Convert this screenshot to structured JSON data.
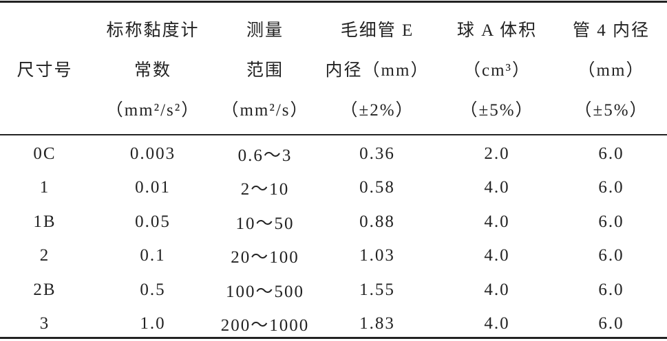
{
  "table": {
    "header": [
      [
        "尺寸号"
      ],
      [
        "标称黏度计",
        "常数",
        "（mm²/s²）"
      ],
      [
        "测量",
        "范围",
        "（mm²/s）"
      ],
      [
        "毛细管 E",
        "内径（mm）",
        "（±2%）"
      ],
      [
        "球 A 体积",
        "（cm³）",
        "（±5%）"
      ],
      [
        "管 4 内径",
        "（mm）",
        "（±5%）"
      ]
    ],
    "rows": [
      [
        "0C",
        "0.003",
        "0.6～3",
        "0.36",
        "2.0",
        "6.0"
      ],
      [
        "1",
        "0.01",
        "2～10",
        "0.58",
        "4.0",
        "6.0"
      ],
      [
        "1B",
        "0.05",
        "10～50",
        "0.88",
        "4.0",
        "6.0"
      ],
      [
        "2",
        "0.1",
        "20～100",
        "1.03",
        "4.0",
        "6.0"
      ],
      [
        "2B",
        "0.5",
        "100～500",
        "1.55",
        "4.0",
        "6.0"
      ],
      [
        "3",
        "1.0",
        "200～1000",
        "1.83",
        "4.0",
        "6.0"
      ]
    ]
  }
}
